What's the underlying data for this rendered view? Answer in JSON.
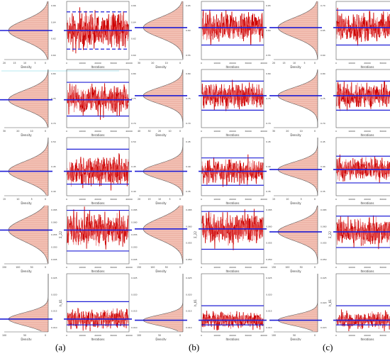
{
  "captions": [
    "(a)",
    "(b)",
    "(c)"
  ],
  "colors": {
    "density_fill": "#f4c4b8",
    "density_line": "#c0392b",
    "trace": "#cc0000",
    "trace_light": "#e85a5a",
    "reference": "#1f1fd6",
    "frame": "#555555",
    "underline": "#9fe3ee"
  },
  "chart_data": {
    "type": "mcmc-trace-and-density-grid",
    "panel_axis_labels": {
      "density_x": "Density",
      "trace_x": "Iterations"
    },
    "trace_x_ticks": [
      "0",
      "10000",
      "20000",
      "30000",
      "40000"
    ],
    "columns": [
      {
        "caption": "(a)",
        "rows": [
          {
            "density_ticks": [
              "20",
              "15",
              "10",
              "5",
              "0"
            ],
            "trace_y_ticks": [
              "0.66",
              "0.64",
              "0.62",
              "0.60"
            ],
            "ylabel": "",
            "dashed_bounds": true,
            "mean_frac": 0.5,
            "lo_frac": 0.82,
            "hi_frac": 0.18
          },
          {
            "density_ticks": [
              "30",
              "20",
              "10",
              "0"
            ],
            "trace_y_ticks": [
              "0.80",
              "0.75",
              "0.70"
            ],
            "ylabel": "",
            "dashed_bounds": false,
            "mean_frac": 0.52,
            "lo_frac": 0.8,
            "hi_frac": 0.22
          },
          {
            "density_ticks": [
              "15",
              "10",
              "5",
              "0"
            ],
            "trace_y_ticks": [
              "0.50",
              "0.45",
              "0.40"
            ],
            "ylabel": "",
            "dashed_bounds": false,
            "mean_frac": 0.58,
            "lo_frac": 0.8,
            "hi_frac": 0.2
          },
          {
            "density_ticks": [
              "150",
              "100",
              "50",
              "0"
            ],
            "trace_y_ticks": [
              "0.065",
              "0.060",
              "0.055",
              "0.050",
              "0.045"
            ],
            "ylabel": "Σ_22",
            "dashed_bounds": false,
            "mean_frac": 0.42,
            "lo_frac": 0.78,
            "hi_frac": 0.08
          },
          {
            "density_ticks": [
              "100",
              "50",
              "0"
            ],
            "trace_y_ticks": [
              "0.025",
              "0.020",
              "0.015",
              "0.010"
            ],
            "ylabel": "h_01",
            "dashed_bounds": false,
            "mean_frac": 0.78,
            "lo_frac": 0.88,
            "hi_frac": 0.48
          }
        ]
      },
      {
        "caption": "(b)",
        "rows": [
          {
            "density_ticks": [
              "30",
              "20",
              "10",
              "0"
            ],
            "trace_y_ticks": [
              "0.65",
              "0.60",
              "0.55"
            ],
            "ylabel": "",
            "dashed_bounds": false,
            "mean_frac": 0.45,
            "lo_frac": 0.75,
            "hi_frac": 0.15
          },
          {
            "density_ticks": [
              "40",
              "30",
              "20",
              "10",
              "0"
            ],
            "trace_y_ticks": [
              "0.80",
              "0.75",
              "0.70"
            ],
            "ylabel": "",
            "dashed_bounds": false,
            "mean_frac": 0.45,
            "lo_frac": 0.7,
            "hi_frac": 0.2
          },
          {
            "density_ticks": [
              "20",
              "15",
              "10",
              "5",
              "0"
            ],
            "trace_y_ticks": [
              "0.45",
              "0.40",
              "0.35"
            ],
            "ylabel": "",
            "dashed_bounds": false,
            "mean_frac": 0.58,
            "lo_frac": 0.82,
            "hi_frac": 0.35
          },
          {
            "density_ticks": [
              "150",
              "100",
              "50",
              "0"
            ],
            "trace_y_ticks": [
              "0.065",
              "0.060",
              "0.055",
              "0.050"
            ],
            "ylabel": "Σ_22",
            "dashed_bounds": false,
            "mean_frac": 0.4,
            "lo_frac": 0.75,
            "hi_frac": 0.1
          },
          {
            "density_ticks": [
              "100",
              "50",
              "0"
            ],
            "trace_y_ticks": [
              "0.025",
              "0.020",
              "0.015",
              "0.010"
            ],
            "ylabel": "h_01",
            "dashed_bounds": false,
            "mean_frac": 0.8,
            "lo_frac": 0.88,
            "hi_frac": 0.55
          }
        ]
      },
      {
        "caption": "(c)",
        "rows": [
          {
            "density_ticks": [
              "20",
              "15",
              "10",
              "5",
              "0"
            ],
            "trace_y_ticks": [
              "0.70",
              "0.65",
              "0.60"
            ],
            "ylabel": "",
            "dashed_bounds": false,
            "mean_frac": 0.45,
            "lo_frac": 0.75,
            "hi_frac": 0.15
          },
          {
            "density_ticks": [
              "30",
              "20",
              "10",
              "0"
            ],
            "trace_y_ticks": [
              "0.80",
              "0.75",
              "0.70"
            ],
            "ylabel": "",
            "dashed_bounds": false,
            "mean_frac": 0.45,
            "lo_frac": 0.7,
            "hi_frac": 0.2
          },
          {
            "density_ticks": [
              "15",
              "10",
              "5",
              "0"
            ],
            "trace_y_ticks": [
              "0.45",
              "0.40",
              "0.35"
            ],
            "ylabel": "",
            "dashed_bounds": false,
            "mean_frac": 0.55,
            "lo_frac": 0.78,
            "hi_frac": 0.32
          },
          {
            "density_ticks": [
              "150",
              "100",
              "50",
              "0"
            ],
            "trace_y_ticks": [
              "0.065",
              "0.060",
              "0.055",
              "0.050"
            ],
            "ylabel": "Σ_22",
            "dashed_bounds": false,
            "mean_frac": 0.45,
            "lo_frac": 0.72,
            "hi_frac": 0.18
          },
          {
            "density_ticks": [
              "100",
              "50",
              "0"
            ],
            "trace_y_ticks": [
              "0.025",
              "0.020",
              "0.015"
            ],
            "ylabel": "h_01",
            "dashed_bounds": false,
            "mean_frac": 0.8,
            "lo_frac": 0.88,
            "hi_frac": 0.55
          }
        ]
      }
    ]
  }
}
